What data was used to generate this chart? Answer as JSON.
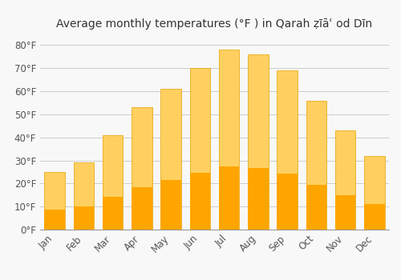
{
  "title": "Average monthly temperatures (°F ) in Qarah ẓīāʿ od Dīn",
  "months": [
    "Jan",
    "Feb",
    "Mar",
    "Apr",
    "May",
    "Jun",
    "Jul",
    "Aug",
    "Sep",
    "Oct",
    "Nov",
    "Dec"
  ],
  "values": [
    25,
    29,
    41,
    53,
    61,
    70,
    78,
    76,
    69,
    56,
    43,
    32
  ],
  "bar_color": "#FFA500",
  "bar_color_light": "#FFD060",
  "background_color": "#f8f8f8",
  "plot_bg_color": "#f8f8f8",
  "grid_color": "#cccccc",
  "text_color": "#555555",
  "ylim": [
    0,
    85
  ],
  "yticks": [
    0,
    10,
    20,
    30,
    40,
    50,
    60,
    70,
    80
  ],
  "title_fontsize": 10,
  "tick_fontsize": 8.5,
  "bar_width": 0.7
}
